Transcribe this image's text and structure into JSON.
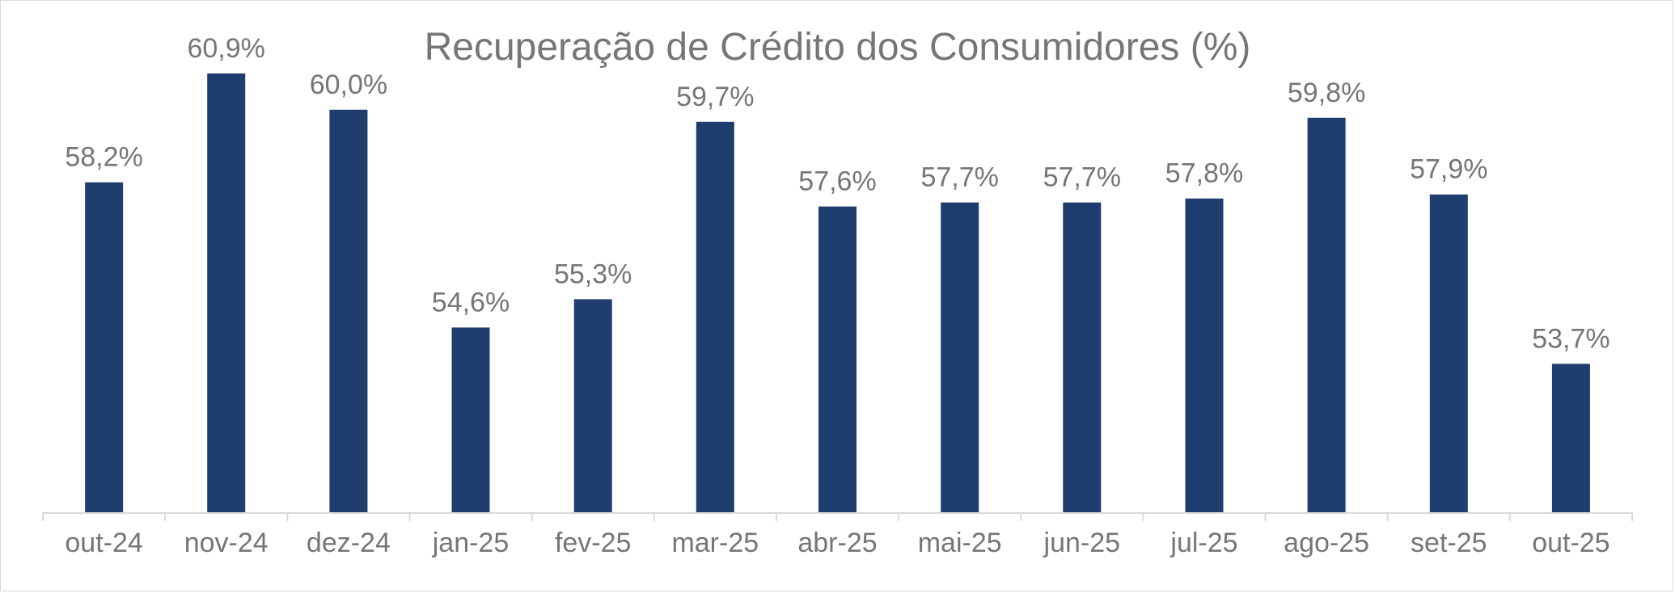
{
  "chart_data": {
    "type": "bar",
    "title": "Recuperação de Crédito dos Consumidores (%)",
    "xlabel": "",
    "ylabel": "",
    "categories": [
      "out-24",
      "nov-24",
      "dez-24",
      "jan-25",
      "fev-25",
      "mar-25",
      "abr-25",
      "mai-25",
      "jun-25",
      "jul-25",
      "ago-25",
      "set-25",
      "out-25"
    ],
    "values": [
      58.2,
      60.9,
      60.0,
      54.6,
      55.3,
      59.7,
      57.6,
      57.7,
      57.7,
      57.8,
      59.8,
      57.9,
      53.7
    ],
    "value_labels": [
      "58,2%",
      "60,9%",
      "60,0%",
      "54,6%",
      "55,3%",
      "59,7%",
      "57,6%",
      "57,7%",
      "57,7%",
      "57,8%",
      "59,8%",
      "57,9%",
      "53,7%"
    ],
    "ylim": [
      50,
      61.9
    ],
    "bar_color": "#1f3d6e",
    "grid": false,
    "legend": "none"
  }
}
